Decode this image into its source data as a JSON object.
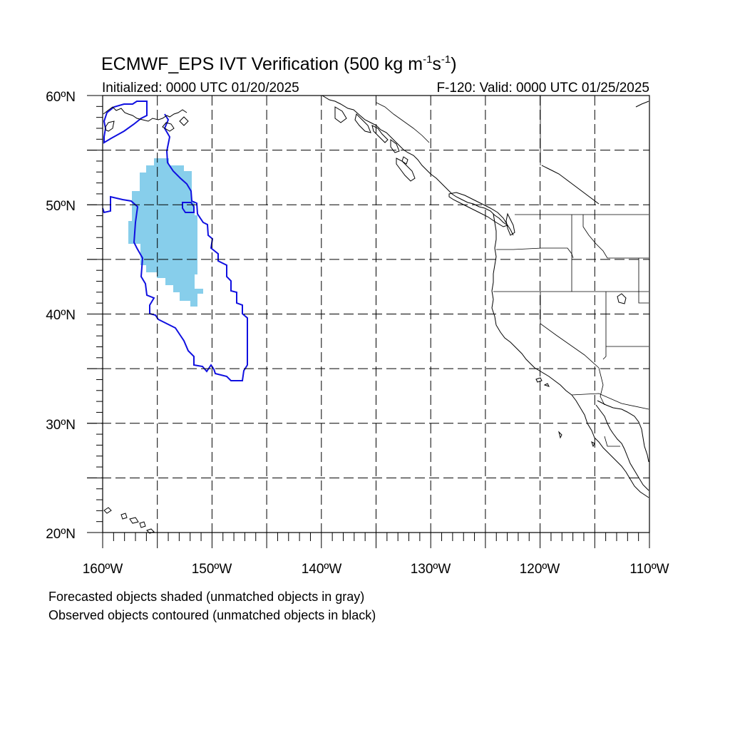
{
  "title": {
    "main": "ECMWF_EPS IVT Verification (500 kg m",
    "exp1": "-1",
    "mid": "s",
    "exp2": "-1",
    "close": ")"
  },
  "subtitle": {
    "initialized": "Initialized: 0000 UTC 01/20/2025",
    "valid": "F-120: Valid: 0000 UTC 01/25/2025"
  },
  "map": {
    "lon_range": [
      -160,
      -110
    ],
    "lat_range": [
      20,
      60
    ],
    "grid_lons": [
      -155,
      -150,
      -145,
      -140,
      -135,
      -130,
      -125,
      -120,
      -115
    ],
    "grid_lats": [
      25,
      30,
      35,
      40,
      45,
      50,
      55
    ],
    "lat_labels": [
      "60ºN",
      "50ºN",
      "40ºN",
      "30ºN",
      "20ºN"
    ],
    "lon_labels": [
      "160ºW",
      "150ºW",
      "140ºW",
      "130ºW",
      "120ºW",
      "110ºW"
    ],
    "forecast_color": "#87ceeb",
    "observed_color": "#1010e0"
  },
  "footnotes": {
    "line1": "Forecasted objects shaded (unmatched objects in gray)",
    "line2": "Observed objects contoured (unmatched objects in black)"
  }
}
